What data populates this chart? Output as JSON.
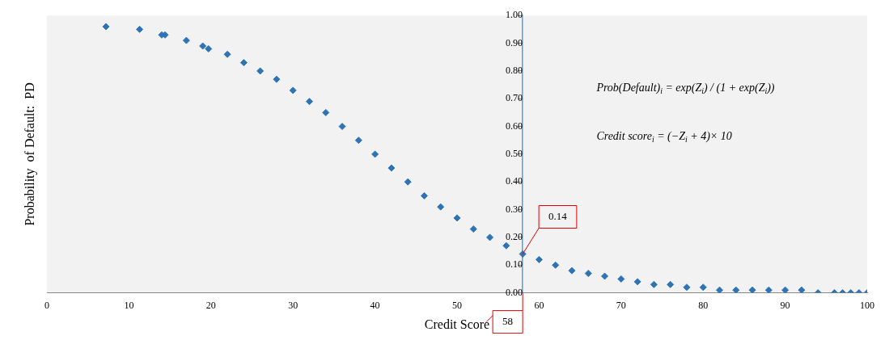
{
  "chart_data": {
    "type": "scatter",
    "xlabel": "Credit Score",
    "ylabel": "Probability  of Default:  PD",
    "x": [
      7.2,
      11.3,
      14,
      14.4,
      17,
      19,
      19.7,
      22,
      24,
      26,
      28,
      30,
      32,
      34,
      36,
      38,
      40,
      42,
      44,
      46,
      48,
      50,
      52,
      54,
      56,
      58,
      60,
      62,
      64,
      66,
      68,
      70,
      72,
      74,
      76,
      78,
      80,
      82,
      84,
      86,
      88,
      90,
      92,
      94,
      96,
      97,
      98,
      99,
      100
    ],
    "series": [
      {
        "color": "#2e74b5",
        "values": [
          0.96,
          0.95,
          0.93,
          0.93,
          0.91,
          0.89,
          0.88,
          0.86,
          0.83,
          0.8,
          0.77,
          0.73,
          0.69,
          0.65,
          0.6,
          0.55,
          0.5,
          0.45,
          0.4,
          0.35,
          0.31,
          0.27,
          0.23,
          0.2,
          0.17,
          0.14,
          0.12,
          0.1,
          0.08,
          0.07,
          0.06,
          0.05,
          0.04,
          0.03,
          0.03,
          0.02,
          0.02,
          0.01,
          0.01,
          0.01,
          0.01,
          0.01,
          0.01,
          0.0,
          0.0,
          0.0,
          0.0,
          0.0,
          0.0
        ]
      }
    ],
    "xlim": [
      0,
      100
    ],
    "xticks": [
      0,
      10,
      20,
      30,
      40,
      50,
      60,
      70,
      80,
      90,
      100
    ],
    "ylim": [
      0,
      1
    ],
    "yticks": [
      {
        "value": 0,
        "label": "0.00"
      },
      {
        "value": 0.1,
        "label": "0.10"
      },
      {
        "value": 0.2,
        "label": "0.20"
      },
      {
        "value": 0.3,
        "label": "0.30"
      },
      {
        "value": 0.4,
        "label": "0.40"
      },
      {
        "value": 0.5,
        "label": "0.50"
      },
      {
        "value": 0.6,
        "label": "0.60"
      },
      {
        "value": 0.7,
        "label": "0.70"
      },
      {
        "value": 0.8,
        "label": "0.80"
      },
      {
        "value": 0.9,
        "label": "0.90"
      },
      {
        "value": 1,
        "label": "1.00"
      }
    ],
    "marker": "diamond",
    "grid": false,
    "legend": false,
    "annotations": [
      "Prob(Default)$_{i}$ = exp(Z$_{i}$) / (1 + exp(Z$_{i}$))",
      "Credit score$_{i}$ = (−Z$_{i}$ + 4)× 10",
      {
        "text": "0.14",
        "x": 58,
        "y": 0.14
      },
      "58"
    ]
  }
}
